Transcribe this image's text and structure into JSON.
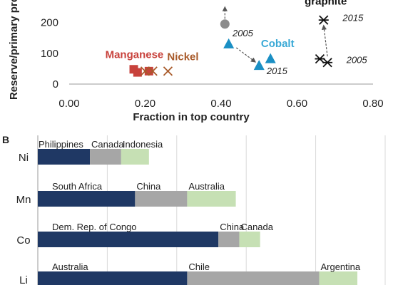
{
  "colors": {
    "manganese": "#c8423c",
    "nickel": "#a85a2a",
    "cobalt": "#1a8fc4",
    "cobalt_label": "#3aa9d6",
    "lithium": "#444444",
    "graphite": "#111111",
    "grey_point": "#8c8c8c",
    "axis": "#999999",
    "grid": "#d9d9d9",
    "top1": "#1f3864",
    "top2": "#a6a6a6",
    "top3": "#c6e0b4"
  },
  "chart_data": [
    {
      "type": "scatter",
      "panel": "",
      "title": "",
      "xlabel": "Fraction in top country",
      "ylabel": "Reserve/primary production",
      "xlim": [
        0,
        0.8
      ],
      "ylim_visible": [
        0,
        250
      ],
      "x_ticks": [
        "0.00",
        "0.20",
        "0.40",
        "0.60",
        "0.80"
      ],
      "y_ticks": [
        "0",
        "100",
        "200"
      ],
      "series": [
        {
          "name": "Manganese",
          "marker": "square",
          "color_key": "manganese",
          "points": [
            [
              0.17,
              48
            ],
            [
              0.18,
              38
            ],
            [
              0.21,
              42
            ]
          ]
        },
        {
          "name": "Nickel",
          "marker": "x",
          "color_key": "nickel",
          "points": [
            [
              0.2,
              42
            ],
            [
              0.22,
              42
            ],
            [
              0.26,
              42
            ]
          ]
        },
        {
          "name": "Cobalt",
          "marker": "triangle",
          "color_key": "cobalt",
          "points": [
            [
              0.42,
              130
            ],
            [
              0.5,
              60
            ],
            [
              0.53,
              82
            ]
          ]
        },
        {
          "name": "graphite",
          "marker": "asterisk",
          "color_key": "graphite",
          "points": [
            [
              0.67,
              208
            ],
            [
              0.66,
              82
            ],
            [
              0.68,
              70
            ]
          ]
        },
        {
          "name": "",
          "marker": "circle",
          "color_key": "grey_point",
          "points": [
            [
              0.41,
              195
            ]
          ]
        }
      ],
      "year_labels": [
        {
          "text": "2005",
          "x": 0.43,
          "y": 155
        },
        {
          "text": "2015",
          "x": 0.52,
          "y": 32
        },
        {
          "text": "2015",
          "x": 0.72,
          "y": 205
        },
        {
          "text": "2005",
          "x": 0.73,
          "y": 68
        }
      ],
      "arrows": [
        {
          "from": [
            0.44,
            118
          ],
          "to": [
            0.49,
            72
          ]
        },
        {
          "from": [
            0.68,
            90
          ],
          "to": [
            0.67,
            190
          ]
        },
        {
          "from": [
            0.41,
            212
          ],
          "to": [
            0.41,
            250
          ]
        }
      ],
      "series_labels": [
        {
          "text": "Manganese",
          "color_key": "manganese",
          "x": 0.095,
          "y": 85
        },
        {
          "text": "Nickel",
          "color_key": "nickel",
          "x": 0.258,
          "y": 78
        },
        {
          "text": "Cobalt",
          "color_key": "cobalt_label",
          "x": 0.505,
          "y": 120
        },
        {
          "text": "graphite",
          "color_key": "graphite",
          "x": 0.62,
          "y": 258
        }
      ]
    },
    {
      "type": "bar",
      "stacked": true,
      "orientation": "horizontal",
      "panel": "B",
      "title": "",
      "xlim": [
        0,
        1
      ],
      "categories": [
        "Ni",
        "Mn",
        "Co",
        "Li"
      ],
      "rows": [
        {
          "label": "Ni",
          "segments": [
            {
              "country": "Philippines",
              "value": 0.15
            },
            {
              "country": "Canada",
              "value": 0.09
            },
            {
              "country": "Indonesia",
              "value": 0.08
            }
          ]
        },
        {
          "label": "Mn",
          "segments": [
            {
              "country": "South Africa",
              "value": 0.28
            },
            {
              "country": "China",
              "value": 0.15
            },
            {
              "country": "Australia",
              "value": 0.14
            }
          ]
        },
        {
          "label": "Co",
          "segments": [
            {
              "country": "Dem. Rep. of Congo",
              "value": 0.52
            },
            {
              "country": "China",
              "value": 0.06
            },
            {
              "country": "Canada",
              "value": 0.06
            }
          ]
        },
        {
          "label": "Li",
          "segments": [
            {
              "country": "Australia",
              "value": 0.43
            },
            {
              "country": "Chile",
              "value": 0.38
            },
            {
              "country": "Argentina",
              "value": 0.11
            }
          ]
        }
      ]
    }
  ]
}
